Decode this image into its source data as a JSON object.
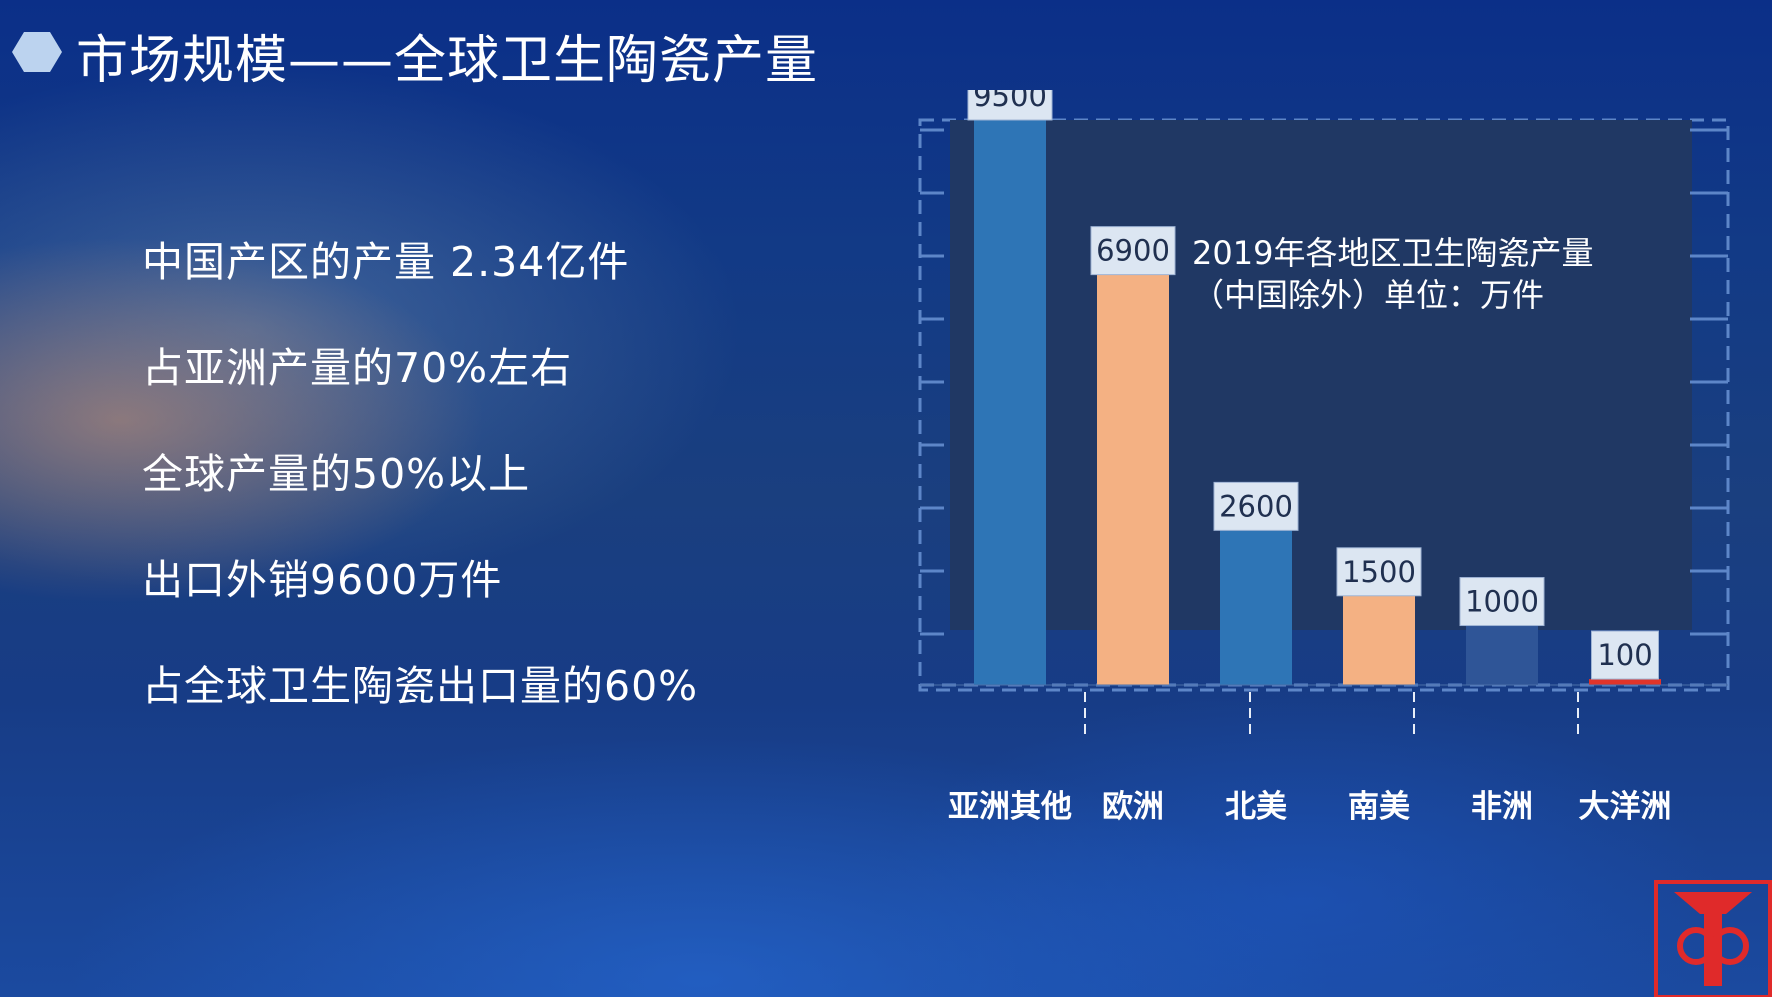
{
  "slide": {
    "title": "市场规模——全球卫生陶瓷产量",
    "points": [
      "中国产区的产量  2.34亿件",
      "占亚洲产量的70%左右",
      "全球产量的50%以上",
      "出口外销9600万件",
      "占全球卫生陶瓷出口量的60%"
    ]
  },
  "colors": {
    "blue_bar": "#2e75b6",
    "orange_bar": "#f4b183",
    "dark_blue_bar": "#2f5597",
    "red_bar": "#e0342a",
    "plot_bg": "#203864",
    "label_bg": "#dce6f2",
    "label_text": "#203050",
    "logo_red": "#e02a2a"
  },
  "chart_data": {
    "type": "bar",
    "title_lines": [
      "2019年各地区卫生陶瓷产量",
      "（中国除外）单位：万件"
    ],
    "categories": [
      "亚洲其他",
      "欧洲",
      "北美",
      "南美",
      "非洲",
      "大洋洲"
    ],
    "values": [
      9500,
      6900,
      2600,
      1500,
      1000,
      100
    ],
    "bar_colors": [
      "#2e75b6",
      "#f4b183",
      "#2e75b6",
      "#f4b183",
      "#2f5597",
      "#e0342a"
    ],
    "ylim": [
      0,
      9500
    ],
    "grid": false,
    "legend": "none",
    "data_labels": true
  }
}
